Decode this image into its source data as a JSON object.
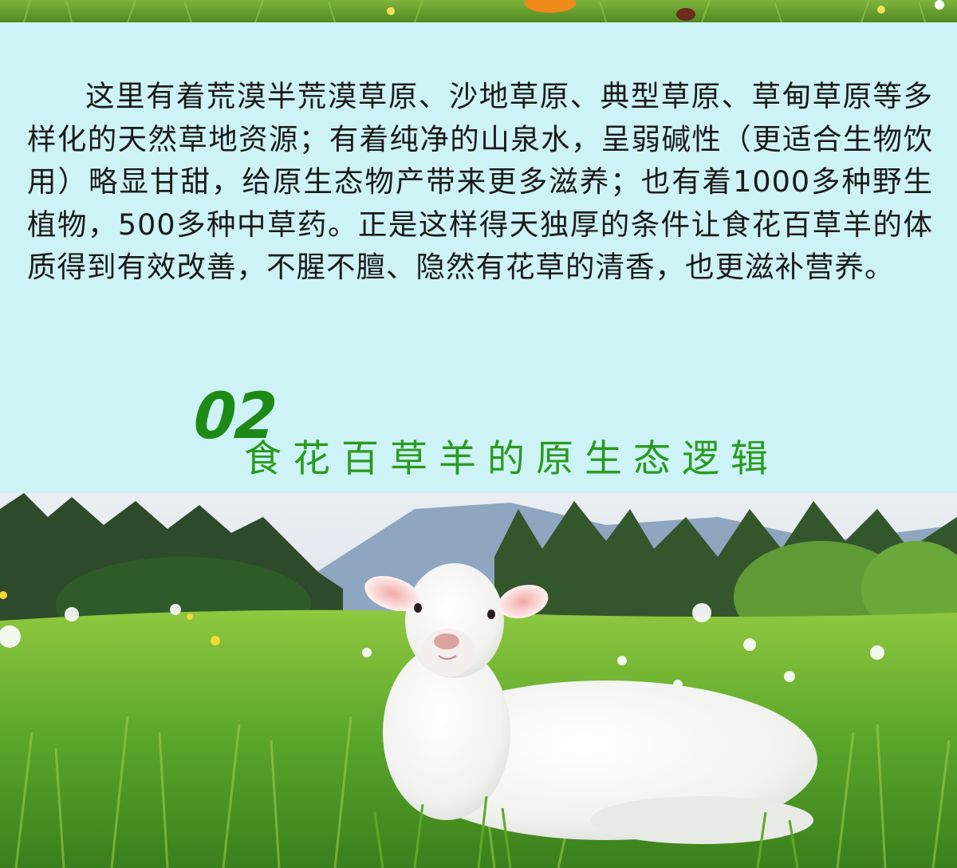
{
  "intro": {
    "paragraph": "这里有着荒漠半荒漠草原、沙地草原、典型草原、草甸草原等多样化的天然草地资源；有着纯净的山泉水，呈弱碱性（更适合生物饮用）略显甘甜，给原生态物产带来更多滋养；也有着1000多种野生植物，500多种中草药。正是这样得天独厚的条件让食花百草羊的体质得到有效改善，不腥不膻、隐然有花草的清香，也更滋补营养。"
  },
  "section": {
    "number": "02",
    "title": "食花百草羊的原生态逻辑"
  },
  "colors": {
    "panel_bg": "#cdf3f6",
    "accent_green": "#2a9a1f",
    "text": "#1a1a1a"
  }
}
